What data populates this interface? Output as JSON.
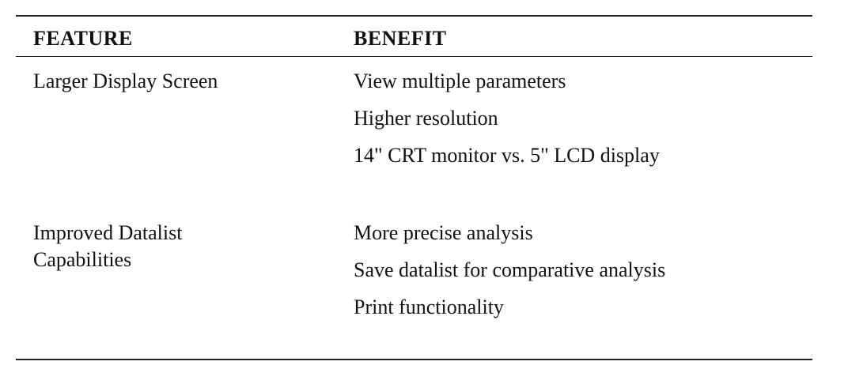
{
  "table": {
    "header": [
      "FEATURE",
      "BENEFIT"
    ],
    "rows": [
      {
        "feature": [
          "Larger Display Screen"
        ],
        "benefits": [
          "View multiple parameters",
          "Higher resolution",
          "14\" CRT monitor vs. 5\" LCD display"
        ]
      },
      {
        "feature": [
          "Improved Datalist",
          "Capabilities"
        ],
        "benefits": [
          "More precise analysis",
          "Save datalist for comparative analysis",
          "Print functionality"
        ]
      }
    ]
  }
}
